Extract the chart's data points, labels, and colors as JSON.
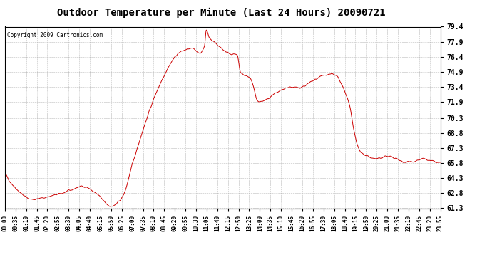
{
  "title": "Outdoor Temperature per Minute (Last 24 Hours) 20090721",
  "copyright": "Copyright 2009 Cartronics.com",
  "line_color": "#cc0000",
  "background_color": "#ffffff",
  "plot_bg_color": "#ffffff",
  "grid_color": "#aaaaaa",
  "title_fontsize": 10,
  "yticks": [
    61.3,
    62.8,
    64.3,
    65.8,
    67.3,
    68.8,
    70.3,
    71.9,
    73.4,
    74.9,
    76.4,
    77.9,
    79.4
  ],
  "ylim": [
    61.3,
    79.4
  ],
  "xtick_labels": [
    "00:00",
    "00:35",
    "01:10",
    "01:45",
    "02:20",
    "02:55",
    "03:30",
    "04:05",
    "04:40",
    "05:15",
    "05:50",
    "06:25",
    "07:00",
    "07:35",
    "08:10",
    "08:45",
    "09:20",
    "09:55",
    "10:30",
    "11:05",
    "11:40",
    "12:15",
    "12:50",
    "13:25",
    "14:00",
    "14:35",
    "15:10",
    "15:45",
    "16:20",
    "16:55",
    "17:30",
    "18:05",
    "18:40",
    "19:15",
    "19:50",
    "20:25",
    "21:00",
    "21:35",
    "22:10",
    "22:45",
    "23:20",
    "23:55"
  ]
}
